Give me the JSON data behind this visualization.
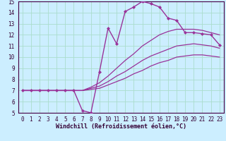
{
  "background_color": "#cceeff",
  "grid_color": "#aaddcc",
  "line_color": "#993399",
  "xlim": [
    -0.5,
    23.5
  ],
  "ylim": [
    5,
    15
  ],
  "xlabel": "Windchill (Refroidissement éolien,°C)",
  "xticks": [
    0,
    1,
    2,
    3,
    4,
    5,
    6,
    7,
    8,
    9,
    10,
    11,
    12,
    13,
    14,
    15,
    16,
    17,
    18,
    19,
    20,
    21,
    22,
    23
  ],
  "yticks": [
    5,
    6,
    7,
    8,
    9,
    10,
    11,
    12,
    13,
    14,
    15
  ],
  "series": [
    {
      "x": [
        0,
        1,
        2,
        3,
        4,
        5,
        6,
        7,
        8,
        9,
        10,
        11,
        12,
        13,
        14,
        15,
        16,
        17,
        18,
        19,
        20,
        21,
        22,
        23
      ],
      "y": [
        7.0,
        7.0,
        7.0,
        7.0,
        7.0,
        7.0,
        7.0,
        5.2,
        5.0,
        8.7,
        12.6,
        11.2,
        14.1,
        14.5,
        15.0,
        14.8,
        14.5,
        13.5,
        13.3,
        12.2,
        12.2,
        12.1,
        12.0,
        11.1
      ],
      "marker": "D",
      "markersize": 2.0,
      "linewidth": 1.0
    },
    {
      "x": [
        0,
        1,
        2,
        3,
        4,
        5,
        6,
        7,
        8,
        9,
        10,
        11,
        12,
        13,
        14,
        15,
        16,
        17,
        18,
        19,
        20,
        21,
        22,
        23
      ],
      "y": [
        7.0,
        7.0,
        7.0,
        7.0,
        7.0,
        7.0,
        7.0,
        7.0,
        7.3,
        7.7,
        8.3,
        9.0,
        9.7,
        10.3,
        11.0,
        11.5,
        12.0,
        12.3,
        12.5,
        12.5,
        12.5,
        12.4,
        12.2,
        12.0
      ],
      "marker": null,
      "markersize": 0,
      "linewidth": 0.9
    },
    {
      "x": [
        0,
        1,
        2,
        3,
        4,
        5,
        6,
        7,
        8,
        9,
        10,
        11,
        12,
        13,
        14,
        15,
        16,
        17,
        18,
        19,
        20,
        21,
        22,
        23
      ],
      "y": [
        7.0,
        7.0,
        7.0,
        7.0,
        7.0,
        7.0,
        7.0,
        7.0,
        7.2,
        7.4,
        7.8,
        8.3,
        8.7,
        9.2,
        9.7,
        10.1,
        10.4,
        10.7,
        11.0,
        11.1,
        11.2,
        11.1,
        11.0,
        10.8
      ],
      "marker": null,
      "markersize": 0,
      "linewidth": 0.9
    },
    {
      "x": [
        0,
        1,
        2,
        3,
        4,
        5,
        6,
        7,
        8,
        9,
        10,
        11,
        12,
        13,
        14,
        15,
        16,
        17,
        18,
        19,
        20,
        21,
        22,
        23
      ],
      "y": [
        7.0,
        7.0,
        7.0,
        7.0,
        7.0,
        7.0,
        7.0,
        7.0,
        7.1,
        7.2,
        7.5,
        7.8,
        8.1,
        8.5,
        8.8,
        9.2,
        9.5,
        9.7,
        10.0,
        10.1,
        10.2,
        10.2,
        10.1,
        10.0
      ],
      "marker": null,
      "markersize": 0,
      "linewidth": 0.9
    }
  ],
  "tick_fontsize": 5.5,
  "xlabel_fontsize": 6.0,
  "tick_color": "#330033",
  "axis_color": "#440044"
}
